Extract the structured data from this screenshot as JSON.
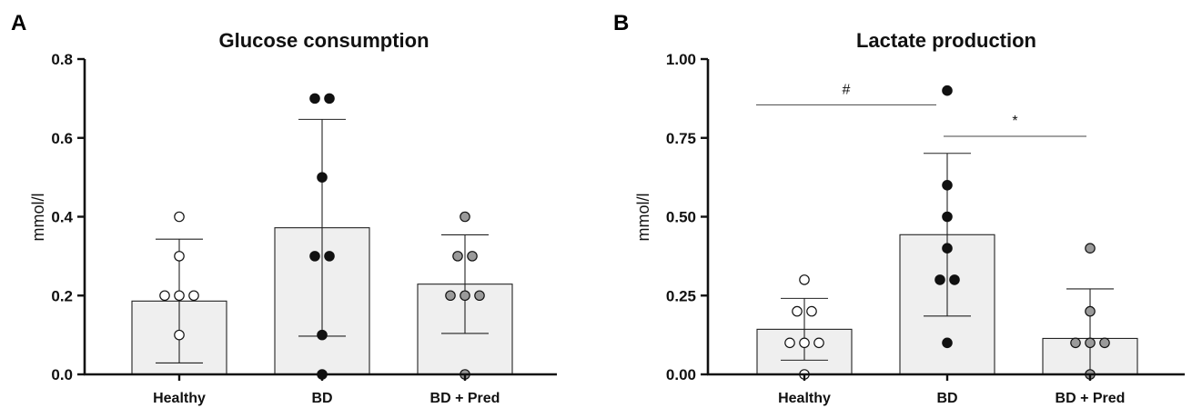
{
  "chart_data": [
    {
      "type": "bar",
      "panel_label": "A",
      "title": "Glucose consumption",
      "ylabel": "mmol/l",
      "xlabel": "",
      "ylim": [
        0,
        0.8
      ],
      "yticks": [
        0.0,
        0.2,
        0.4,
        0.6,
        0.8
      ],
      "ytick_labels": [
        "0.0",
        "0.2",
        "0.4",
        "0.6",
        "0.8"
      ],
      "categories": [
        "Healthy",
        "BD",
        "BD + Pred"
      ],
      "values": [
        0.186,
        0.372,
        0.229
      ],
      "error_sd": [
        0.157,
        0.275,
        0.125
      ],
      "points": [
        [
          0.4,
          0.3,
          0.2,
          0.2,
          0.2,
          0.1
        ],
        [
          0.7,
          0.7,
          0.5,
          0.3,
          0.3,
          0.1,
          0.0
        ],
        [
          0.4,
          0.3,
          0.3,
          0.2,
          0.2,
          0.2,
          0.0
        ]
      ],
      "point_colors": [
        "#ffffff",
        "#111111",
        "#9a9a9a"
      ],
      "bar_color": "#efefef",
      "significance": []
    },
    {
      "type": "bar",
      "panel_label": "B",
      "title": "Lactate production",
      "ylabel": "mmol/l",
      "xlabel": "",
      "ylim": [
        0,
        1.0
      ],
      "yticks": [
        0.0,
        0.25,
        0.5,
        0.75,
        1.0
      ],
      "ytick_labels": [
        "0.00",
        "0.25",
        "0.50",
        "0.75",
        "1.00"
      ],
      "categories": [
        "Healthy",
        "BD",
        "BD + Pred"
      ],
      "values": [
        0.143,
        0.443,
        0.114
      ],
      "error_sd": [
        0.098,
        0.258,
        0.157
      ],
      "points": [
        [
          0.3,
          0.2,
          0.2,
          0.1,
          0.1,
          0.1,
          0.0
        ],
        [
          0.9,
          0.6,
          0.5,
          0.4,
          0.3,
          0.3,
          0.1
        ],
        [
          0.4,
          0.2,
          0.1,
          0.1,
          0.1,
          0.0
        ]
      ],
      "point_colors": [
        "#ffffff",
        "#111111",
        "#9a9a9a"
      ],
      "bar_color": "#efefef",
      "significance": [
        {
          "from": 0,
          "to": 1,
          "y": 0.855,
          "label": "#"
        },
        {
          "from": 1,
          "to": 2,
          "y": 0.755,
          "label": "*"
        }
      ]
    }
  ]
}
